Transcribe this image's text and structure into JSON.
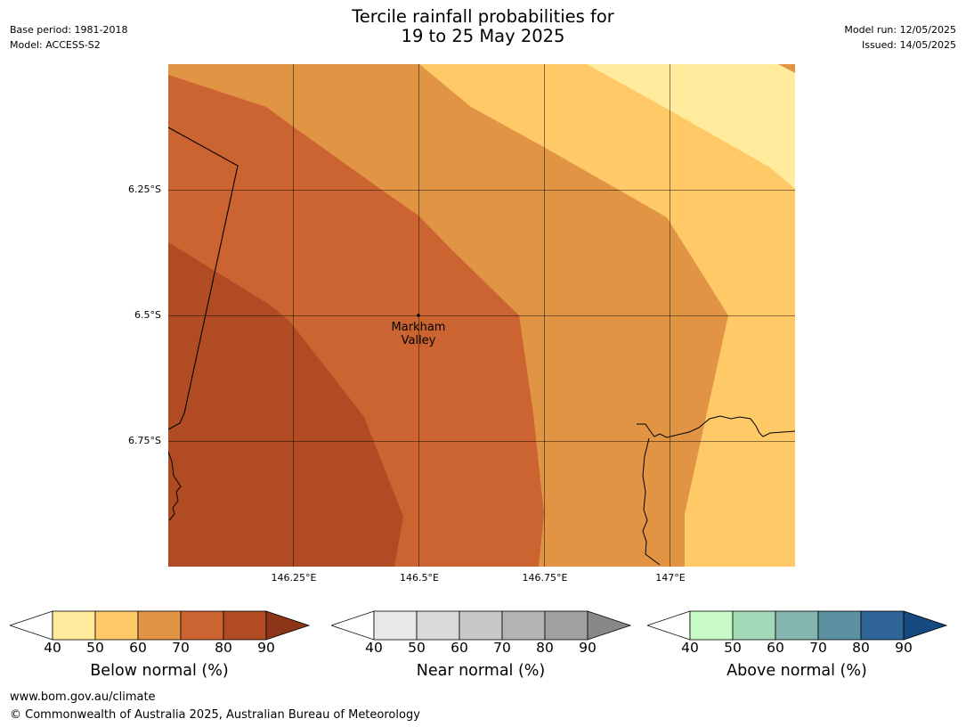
{
  "title": {
    "line1": "Tercile rainfall probabilities for",
    "line2": "19 to 25 May 2025"
  },
  "meta": {
    "base_period": "Base period: 1981-2018",
    "model": "Model: ACCESS-S2",
    "model_run": "Model run: 12/05/2025",
    "issued": "Issued: 14/05/2025"
  },
  "map": {
    "lat_ticks": [
      "6.25°S",
      "6.5°S",
      "6.75°S"
    ],
    "lon_ticks": [
      "146.25°E",
      "146.5°E",
      "146.75°E",
      "147°E"
    ],
    "place_label": "Markham Valley",
    "place_label_lines": [
      "Markham",
      "Valley"
    ],
    "colors": {
      "below_50": "#ffeb9b",
      "below_60": "#fec966",
      "below_70": "#e09444",
      "below_80": "#cb6431",
      "below_90": "#b04b24"
    }
  },
  "colorbars": [
    {
      "label": "Below normal (%)",
      "ticks": [
        "40",
        "50",
        "60",
        "70",
        "80",
        "90"
      ],
      "colors": [
        "#ffeb9b",
        "#fec966",
        "#e09444",
        "#cb6431",
        "#b04b24"
      ],
      "extend_color": "#8b3418"
    },
    {
      "label": "Near normal (%)",
      "ticks": [
        "40",
        "50",
        "60",
        "70",
        "80",
        "90"
      ],
      "colors": [
        "#e8e8e8",
        "#d9d9d9",
        "#c8c8c8",
        "#b4b4b4",
        "#a0a0a0"
      ],
      "extend_color": "#888888"
    },
    {
      "label": "Above normal (%)",
      "ticks": [
        "40",
        "50",
        "60",
        "70",
        "80",
        "90"
      ],
      "colors": [
        "#c8fbc8",
        "#a4d9b7",
        "#82b6ae",
        "#5b91a0",
        "#2f6597"
      ],
      "extend_color": "#154a80"
    }
  ],
  "footer": {
    "url": "www.bom.gov.au/climate",
    "copyright": "© Commonwealth of Australia 2025, Australian Bureau of Meteorology"
  }
}
